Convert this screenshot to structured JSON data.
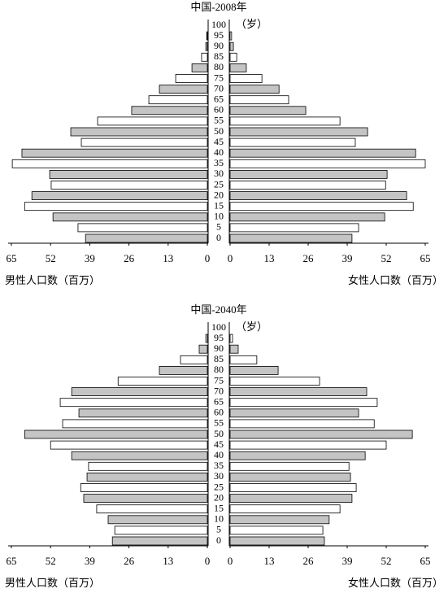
{
  "chart_data": [
    {
      "type": "pyramid",
      "title": "中国-2008年",
      "unit_label": "（岁）",
      "categories": [
        "0",
        "5",
        "10",
        "15",
        "20",
        "25",
        "30",
        "35",
        "40",
        "45",
        "50",
        "55",
        "60",
        "65",
        "70",
        "75",
        "80",
        "85",
        "90",
        "95",
        "100"
      ],
      "left_values": [
        40.4,
        42.9,
        51.2,
        60.6,
        58.2,
        51.8,
        52.3,
        64.7,
        61.5,
        41.8,
        45.3,
        36.4,
        25.1,
        19.4,
        15.9,
        10.5,
        5.1,
        1.9,
        0.5,
        0.2,
        0
      ],
      "right_values": [
        40.6,
        42.8,
        51.5,
        61,
        58.8,
        51.8,
        52.3,
        65,
        61.8,
        41.7,
        45.8,
        36.6,
        25.2,
        19.5,
        16.3,
        10.6,
        5.4,
        2.2,
        1.1,
        0.5,
        0
      ],
      "left_xlabel": "男性人口数（百万）",
      "right_xlabel": "女性人口数（百万）",
      "xlim": [
        0,
        65
      ],
      "xticks": [
        0,
        13,
        26,
        39,
        52,
        65
      ],
      "bar_fills": [
        "#c4c4c4",
        "#ffffff"
      ]
    },
    {
      "type": "pyramid",
      "title": "中国-2040年",
      "unit_label": "（岁）",
      "categories": [
        "0",
        "5",
        "10",
        "15",
        "20",
        "25",
        "30",
        "35",
        "40",
        "45",
        "50",
        "55",
        "60",
        "65",
        "70",
        "75",
        "80",
        "85",
        "90",
        "95",
        "100"
      ],
      "left_values": [
        31.5,
        30.7,
        32.9,
        36.7,
        41,
        42,
        39.9,
        39.4,
        45,
        52,
        60.6,
        48,
        42.6,
        48.8,
        45,
        29.6,
        15.9,
        8.9,
        2.7,
        0.5,
        0
      ],
      "right_values": [
        31.4,
        30.9,
        33,
        36.6,
        40.6,
        42,
        40.1,
        39.6,
        45,
        52,
        60.7,
        48,
        42.8,
        49,
        45.5,
        29.8,
        16,
        8.9,
        2.7,
        0.8,
        0
      ],
      "left_xlabel": "男性人口数（百万）",
      "right_xlabel": "女性人口数（百万）",
      "xlim": [
        0,
        65
      ],
      "xticks": [
        0,
        13,
        26,
        39,
        52,
        65
      ],
      "bar_fills": [
        "#c4c4c4",
        "#ffffff"
      ]
    }
  ]
}
